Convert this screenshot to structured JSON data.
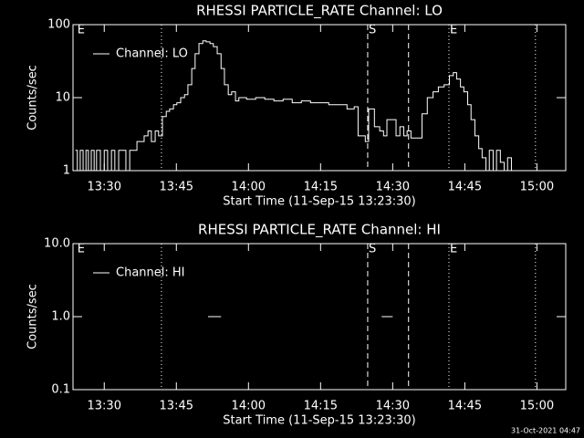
{
  "chart_data": [
    {
      "type": "line",
      "title": "RHESSI PARTICLE_RATE Channel: LO",
      "xlabel": "Start Time (11-Sep-15 13:23:30)",
      "ylabel": "Counts/sec",
      "log_y": true,
      "step": true,
      "legend": "upper left",
      "xlim": [
        803.5,
        906
      ],
      "ylim": [
        1,
        100
      ],
      "xticks": [
        {
          "value": 810,
          "label": "13:30"
        },
        {
          "value": 825,
          "label": "13:45"
        },
        {
          "value": 840,
          "label": "14:00"
        },
        {
          "value": 855,
          "label": "14:15"
        },
        {
          "value": 870,
          "label": "14:30"
        },
        {
          "value": 885,
          "label": "14:45"
        },
        {
          "value": 900,
          "label": "15:00"
        }
      ],
      "yticks": [
        1,
        10,
        100
      ],
      "markers": [
        {
          "x": 804.2,
          "style": "none",
          "label": "E"
        },
        {
          "x": 821.9,
          "style": "dotted"
        },
        {
          "x": 864.8,
          "style": "dashed",
          "label": "S"
        },
        {
          "x": 873.3,
          "style": "dashed"
        },
        {
          "x": 881.7,
          "style": "dotted",
          "label": "E"
        },
        {
          "x": 899.7,
          "style": "dotted"
        }
      ],
      "series": [
        {
          "name": "Channel: LO",
          "color": "#ffffff",
          "x": [
            804.0,
            804.4,
            805.0,
            805.6,
            806.2,
            806.7,
            807.3,
            807.9,
            808.4,
            809.2,
            810.0,
            810.7,
            811.5,
            812.2,
            813.0,
            813.7,
            814.5,
            815.3,
            816.0,
            816.8,
            817.5,
            818.3,
            819.1,
            819.8,
            820.6,
            821.3,
            822.1,
            822.9,
            823.6,
            824.4,
            825.1,
            825.9,
            826.7,
            827.4,
            828.2,
            828.9,
            829.7,
            830.5,
            831.2,
            832.0,
            832.7,
            833.5,
            834.3,
            835.0,
            835.8,
            836.5,
            837.3,
            838.0,
            839.6,
            841.5,
            843.4,
            845.3,
            847.2,
            849.1,
            851.0,
            852.9,
            854.8,
            856.7,
            858.6,
            860.5,
            862.0,
            862.8,
            863.5,
            864.3,
            865.0,
            866.2,
            867.3,
            868.1,
            868.8,
            870.0,
            870.7,
            871.5,
            872.3,
            873.0,
            873.8,
            874.9,
            876.1,
            877.2,
            878.4,
            879.5,
            880.7,
            881.8,
            882.6,
            883.3,
            884.1,
            884.8,
            885.6,
            886.3,
            887.1,
            887.9,
            888.6,
            889.4,
            890.1,
            890.9,
            891.6,
            892.4,
            893.2,
            893.9,
            894.7
          ],
          "values": [
            1.9,
            1,
            1.9,
            1,
            1.9,
            1,
            1.9,
            1,
            1.9,
            1,
            1.9,
            1,
            1.9,
            1,
            1.9,
            1.9,
            1,
            1.9,
            1.9,
            2.5,
            2.5,
            3,
            3.5,
            2.5,
            3.5,
            3,
            5.5,
            6.5,
            7,
            8,
            8.5,
            10,
            11,
            15,
            25,
            40,
            55,
            60,
            58,
            55,
            50,
            40,
            25,
            15,
            11,
            12,
            9,
            10,
            9.5,
            10,
            9.5,
            9,
            9.5,
            8.5,
            9,
            8.5,
            8.5,
            8,
            8,
            7,
            7.5,
            3,
            3,
            2.5,
            7,
            4,
            3.5,
            3,
            5,
            5,
            3,
            4,
            3,
            3.5,
            2.8,
            2.8,
            6,
            10,
            12,
            14,
            15,
            20,
            22,
            18,
            14,
            12,
            8,
            5,
            3,
            2,
            1.5,
            1,
            1.9,
            1,
            1.9,
            1.3,
            1,
            1.5,
            1
          ]
        }
      ]
    },
    {
      "type": "line",
      "title": "RHESSI PARTICLE_RATE Channel: HI",
      "xlabel": "Start Time (11-Sep-15 13:23:30)",
      "ylabel": "Counts/sec",
      "log_y": true,
      "step": true,
      "legend": "upper left",
      "xlim": [
        803.5,
        906
      ],
      "ylim": [
        0.1,
        10
      ],
      "xticks": [
        {
          "value": 810,
          "label": "13:30"
        },
        {
          "value": 825,
          "label": "13:45"
        },
        {
          "value": 840,
          "label": "14:00"
        },
        {
          "value": 855,
          "label": "14:15"
        },
        {
          "value": 870,
          "label": "14:30"
        },
        {
          "value": 885,
          "label": "14:45"
        },
        {
          "value": 900,
          "label": "15:00"
        }
      ],
      "yticks": [
        0.1,
        {
          "value": 1,
          "label": "1.0"
        },
        {
          "value": 10,
          "label": "10.0"
        }
      ],
      "markers": [
        {
          "x": 804.2,
          "style": "none",
          "label": "E"
        },
        {
          "x": 821.9,
          "style": "dotted"
        },
        {
          "x": 864.8,
          "style": "dashed",
          "label": "S"
        },
        {
          "x": 873.3,
          "style": "dashed"
        },
        {
          "x": 881.7,
          "style": "dotted",
          "label": "E"
        },
        {
          "x": 899.7,
          "style": "dotted"
        }
      ],
      "series": [
        {
          "name": "Channel: HI",
          "color": "#ffffff",
          "x": [
            831.6,
            834.3,
            850,
            867.7,
            870.0
          ],
          "values": [
            1,
            1,
            null,
            1,
            1
          ]
        }
      ]
    }
  ],
  "footer": "31-Oct-2021 04:47"
}
